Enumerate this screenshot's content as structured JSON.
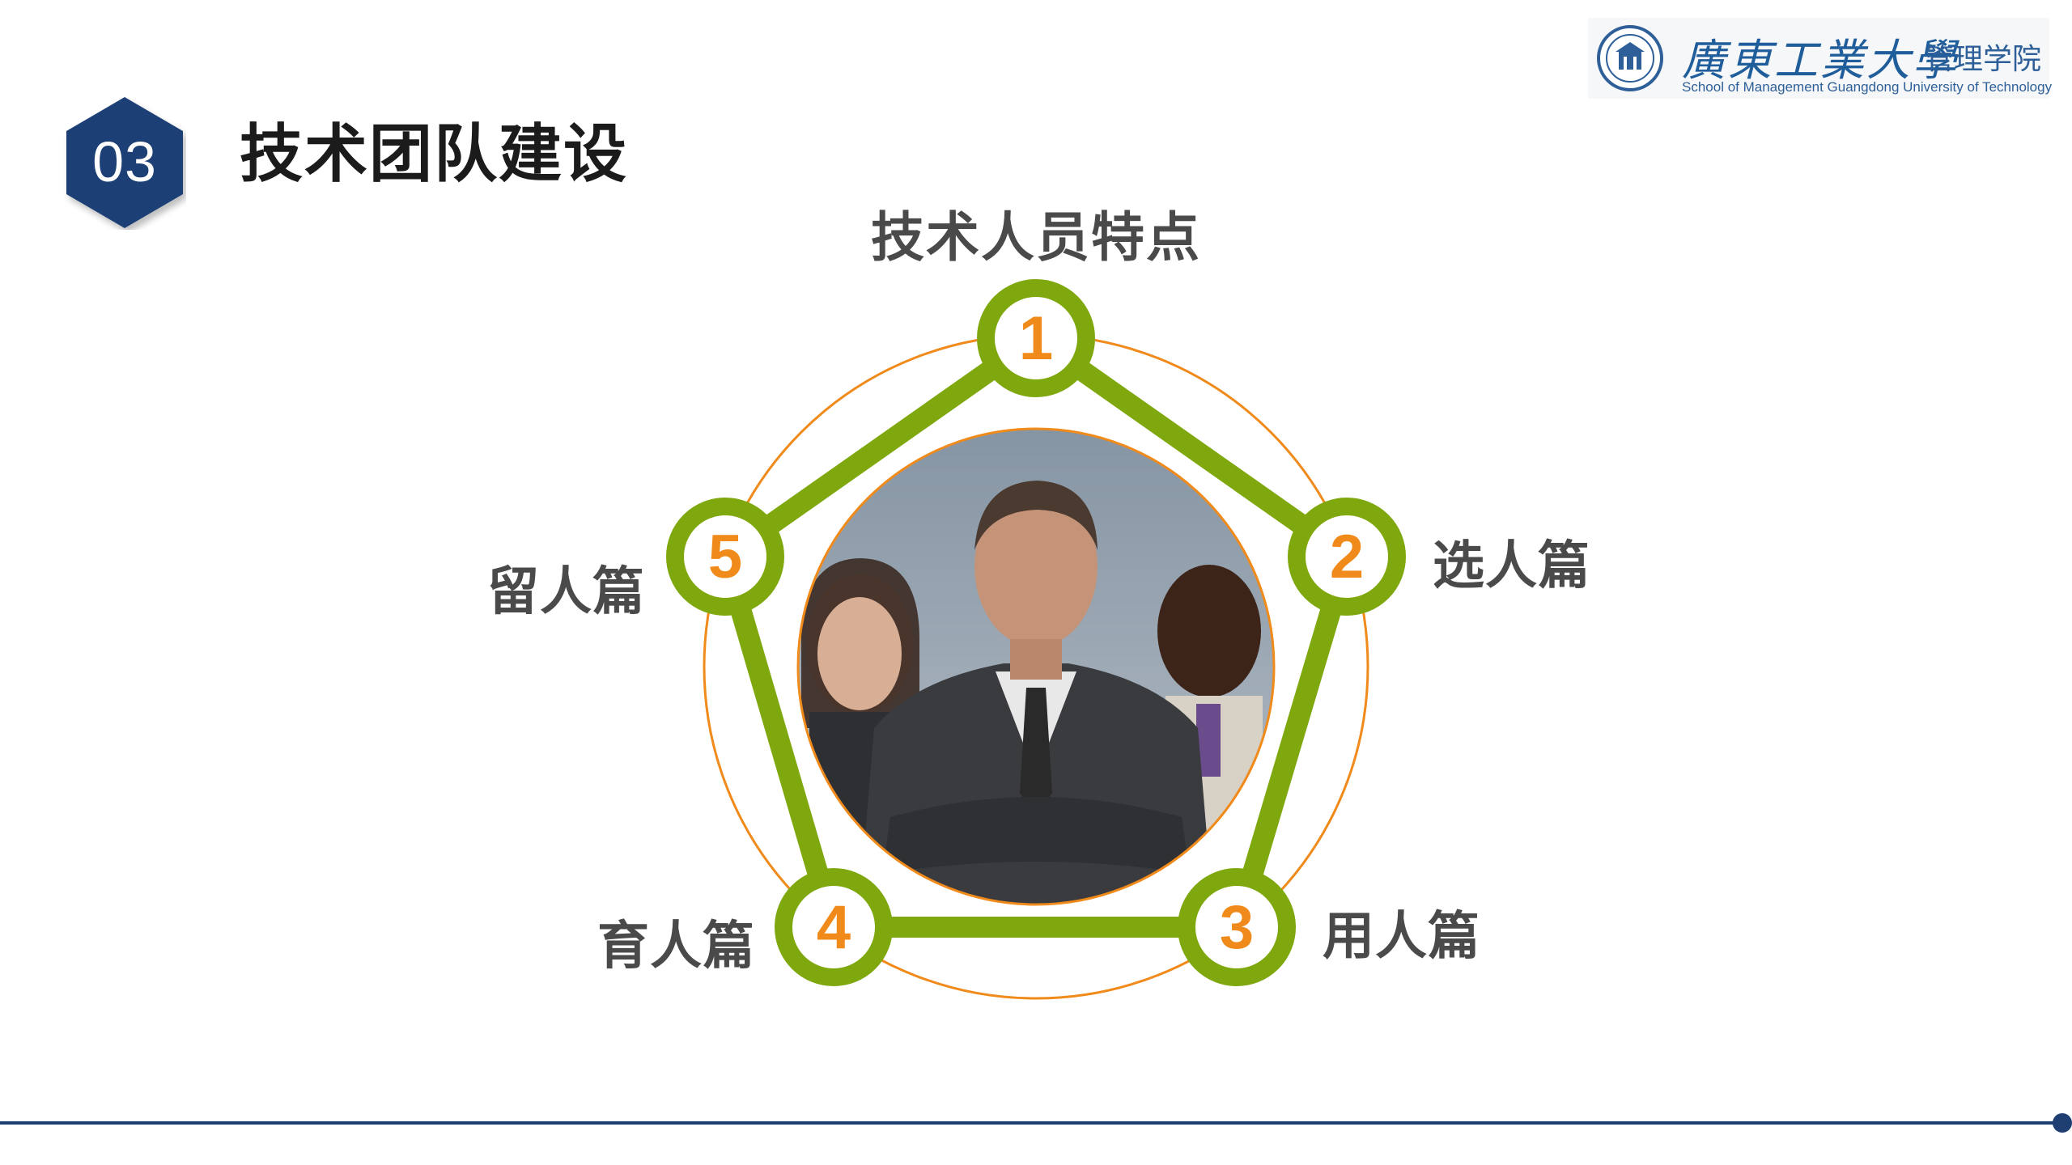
{
  "slide": {
    "section_number": "03",
    "title": "技术团队建设"
  },
  "logo": {
    "university_name": "廣東工業大學",
    "school_name": "管理学院",
    "english_name": "School of Management Guangdong University of Technology"
  },
  "diagram": {
    "center_title": "技术人员特点",
    "nodes": [
      {
        "number": "1",
        "label": ""
      },
      {
        "number": "2",
        "label": "选人篇"
      },
      {
        "number": "3",
        "label": "用人篇"
      },
      {
        "number": "4",
        "label": "育人篇"
      },
      {
        "number": "5",
        "label": "留人篇"
      }
    ],
    "center_image": "business-team-photo"
  },
  "colors": {
    "primary_blue": "#1f3f73",
    "green": "#7fa80f",
    "orange": "#f08a1a",
    "text_gray": "#4a4a4a"
  }
}
